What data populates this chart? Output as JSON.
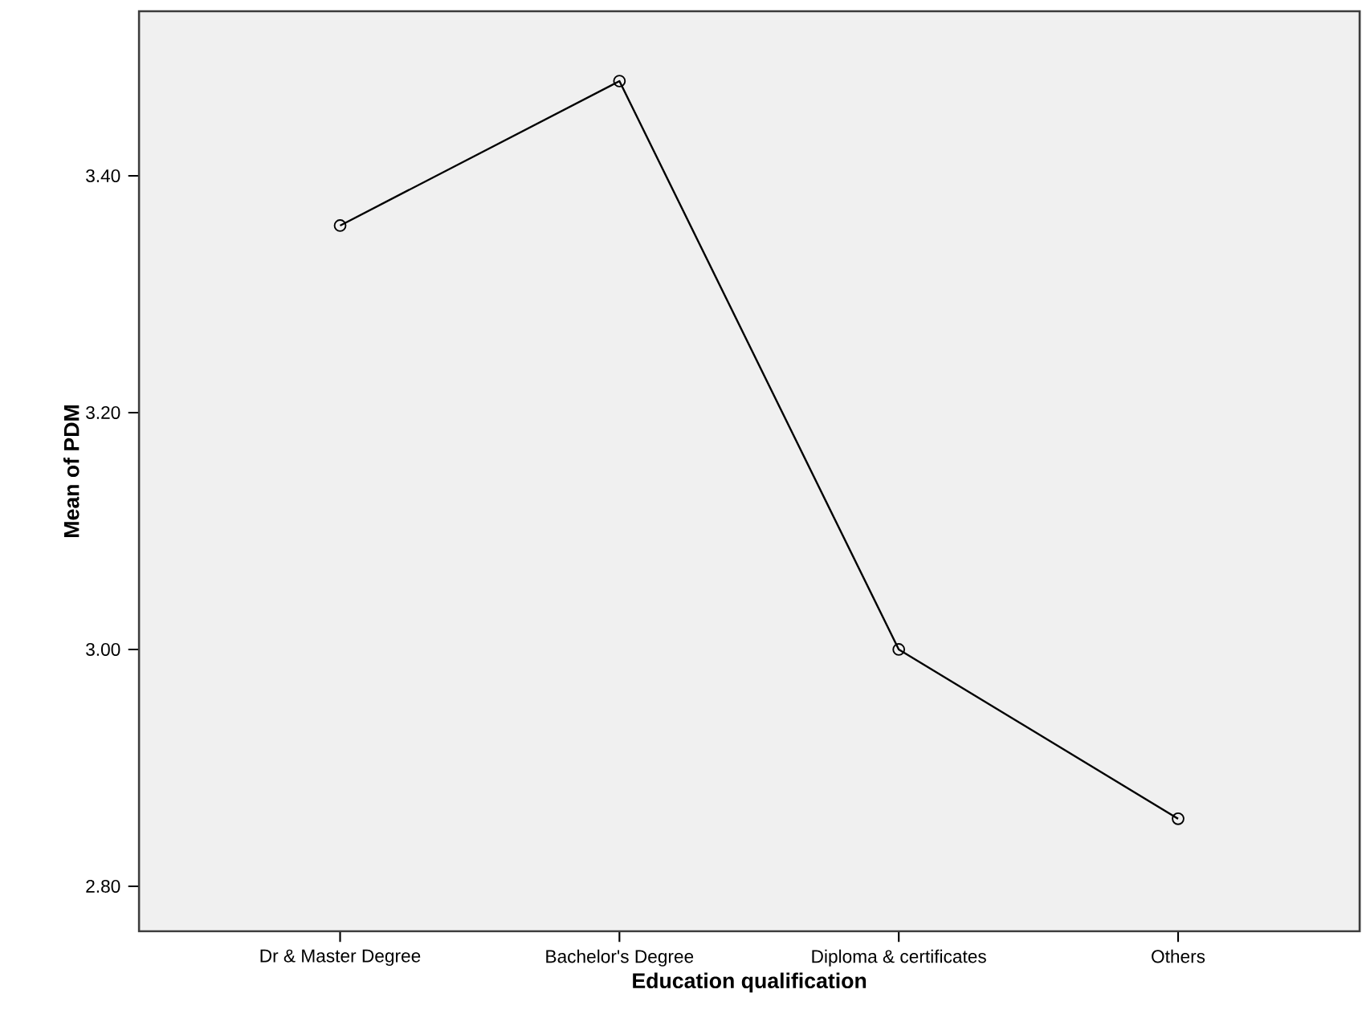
{
  "chart_data": {
    "type": "line",
    "xlabel": "Education qualification",
    "ylabel": "Mean of PDM",
    "categories": [
      "Dr & Master Degree",
      "Bachelor's Degree",
      "Diploma & certificates",
      "Others"
    ],
    "values": [
      3.358,
      3.48,
      3.0,
      2.857
    ],
    "color": "#000000",
    "ylim": [
      2.762,
      3.539
    ],
    "yticks": [
      {
        "value": 2.8,
        "label": "2.80"
      },
      {
        "value": 3.0,
        "label": "3.00"
      },
      {
        "value": 3.2,
        "label": "3.20"
      },
      {
        "value": 3.4,
        "label": "3.40"
      }
    ],
    "grid": false,
    "marker": "circle",
    "line_style": "solid"
  }
}
